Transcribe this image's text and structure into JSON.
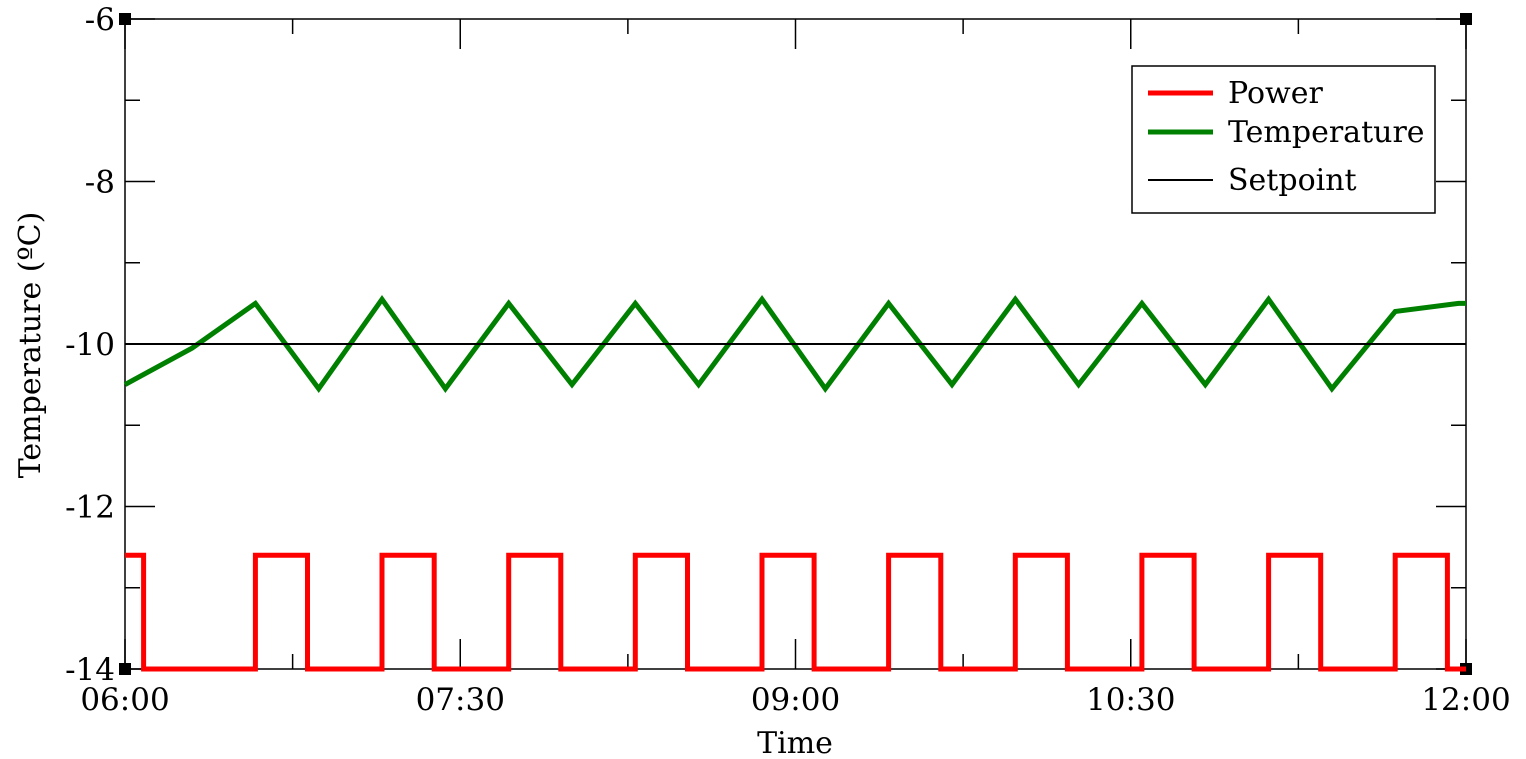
{
  "chart_data": {
    "type": "line",
    "xlabel": "Time",
    "ylabel": "Temperature (ºC)",
    "x_ticks": [
      "06:00",
      "07:30",
      "09:00",
      "10:30",
      "12:00"
    ],
    "x_range": [
      "06:00",
      "12:00"
    ],
    "y_ticks": [
      -6,
      -8,
      -10,
      -12,
      -14
    ],
    "ylim": [
      -14,
      -6
    ],
    "grid": false,
    "legend_position": "top-right",
    "series": [
      {
        "name": "Power",
        "color": "#ff0000",
        "step": true,
        "x": [
          "06:00",
          "06:02",
          "06:05",
          "06:06",
          "06:11",
          "06:32",
          "06:35",
          "06:43",
          "06:49",
          "07:06",
          "07:09",
          "07:17",
          "07:23",
          "07:40",
          "07:43",
          "07:51",
          "07:57",
          "08:14",
          "08:17",
          "08:25",
          "08:31",
          "08:48",
          "08:51",
          "08:59",
          "09:05",
          "09:22",
          "09:25",
          "09:33",
          "09:39",
          "09:56",
          "09:59",
          "10:07",
          "10:13",
          "10:30",
          "10:33",
          "10:41",
          "10:47",
          "11:04",
          "11:07",
          "11:15",
          "11:21",
          "11:38",
          "11:41",
          "11:49",
          "11:55",
          "12:00"
        ],
        "y": [
          -12.6,
          -12.6,
          -14,
          -14,
          -14,
          -14,
          -12.6,
          -12.6,
          -14,
          -14,
          -12.6,
          -12.6,
          -14,
          -14,
          -12.6,
          -12.6,
          -14,
          -14,
          -12.6,
          -12.6,
          -14,
          -14,
          -12.6,
          -12.6,
          -14,
          -14,
          -12.6,
          -12.6,
          -14,
          -14,
          -12.6,
          -12.6,
          -14,
          -14,
          -12.6,
          -12.6,
          -14,
          -14,
          -12.6,
          -12.6,
          -14,
          -14,
          -12.6,
          -12.6,
          -14,
          -14
        ]
      },
      {
        "name": "Temperature",
        "color": "#008000",
        "x": [
          "06:00",
          "06:18",
          "06:35",
          "06:52",
          "07:09",
          "07:26",
          "07:43",
          "08:00",
          "08:17",
          "08:34",
          "08:51",
          "09:08",
          "09:25",
          "09:42",
          "09:59",
          "10:16",
          "10:33",
          "10:50",
          "11:07",
          "11:24",
          "11:41",
          "11:58",
          "12:00"
        ],
        "y": [
          -10.5,
          -10.05,
          -9.5,
          -10.55,
          -9.45,
          -10.55,
          -9.5,
          -10.5,
          -9.5,
          -10.5,
          -9.45,
          -10.55,
          -9.5,
          -10.5,
          -9.45,
          -10.5,
          -9.5,
          -10.5,
          -9.45,
          -10.55,
          -9.6,
          -9.5,
          -9.5
        ]
      },
      {
        "name": "Setpoint",
        "color": "#000000",
        "x": [
          "06:00",
          "12:00"
        ],
        "y": [
          -10,
          -10
        ]
      }
    ]
  }
}
